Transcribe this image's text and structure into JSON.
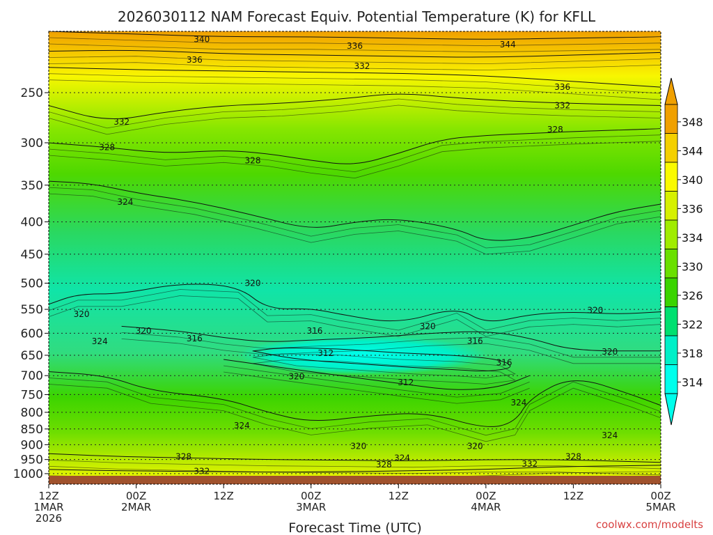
{
  "chart_data": {
    "type": "heatmap",
    "title": "2026030112 NAM Forecast Equiv. Potential Temperature (K) for KFLL",
    "xlabel": "Forecast Time (UTC)",
    "ylabel": "",
    "credit": "coolwx.com/modelts",
    "x_ticks": [
      {
        "hour": 0,
        "line1": "12Z",
        "line2": "1MAR",
        "line3": "2026"
      },
      {
        "hour": 12,
        "line1": "00Z",
        "line2": "2MAR",
        "line3": ""
      },
      {
        "hour": 24,
        "line1": "12Z",
        "line2": "",
        "line3": ""
      },
      {
        "hour": 36,
        "line1": "00Z",
        "line2": "3MAR",
        "line3": ""
      },
      {
        "hour": 48,
        "line1": "12Z",
        "line2": "",
        "line3": ""
      },
      {
        "hour": 60,
        "line1": "00Z",
        "line2": "4MAR",
        "line3": ""
      },
      {
        "hour": 72,
        "line1": "12Z",
        "line2": "",
        "line3": ""
      },
      {
        "hour": 84,
        "line1": "00Z",
        "line2": "5MAR",
        "line3": ""
      }
    ],
    "x_range": [
      0,
      84
    ],
    "y_ticks": [
      250,
      300,
      350,
      400,
      450,
      500,
      550,
      600,
      650,
      700,
      750,
      800,
      850,
      900,
      950,
      1000
    ],
    "y_range": [
      200,
      1013
    ],
    "y_scale": "log-pressure",
    "grid": "dotted-horizontal",
    "colorbar_ticks": [
      348,
      344,
      340,
      336,
      334,
      330,
      326,
      322,
      318,
      314
    ],
    "colorbar_colors": [
      "#f0a000",
      "#f4d000",
      "#fafa00",
      "#d6f000",
      "#a0ec00",
      "#6ae000",
      "#3ad400",
      "#00e070",
      "#00f0c8",
      "#00ffec"
    ],
    "contours": [
      {
        "value": 344,
        "points": [
          [
            0,
            200
          ],
          [
            12,
            202
          ],
          [
            24,
            204
          ],
          [
            36,
            204
          ],
          [
            48,
            205
          ],
          [
            60,
            206
          ],
          [
            72,
            205
          ],
          [
            84,
            204
          ]
        ]
      },
      {
        "value": 340,
        "points": [
          [
            0,
            215
          ],
          [
            12,
            214
          ],
          [
            24,
            217
          ],
          [
            36,
            218
          ],
          [
            48,
            219
          ],
          [
            60,
            220
          ],
          [
            72,
            218
          ],
          [
            84,
            216
          ]
        ]
      },
      {
        "value": 336,
        "points": [
          [
            0,
            228
          ],
          [
            12,
            230
          ],
          [
            24,
            231
          ],
          [
            36,
            232
          ],
          [
            48,
            233
          ],
          [
            60,
            235
          ],
          [
            72,
            240
          ],
          [
            84,
            245
          ]
        ]
      },
      {
        "value": 332,
        "points": [
          [
            0,
            262
          ],
          [
            8,
            278
          ],
          [
            16,
            268
          ],
          [
            24,
            262
          ],
          [
            32,
            260
          ],
          [
            40,
            256
          ],
          [
            48,
            250
          ],
          [
            56,
            255
          ],
          [
            64,
            258
          ],
          [
            72,
            260
          ],
          [
            84,
            262
          ]
        ]
      },
      {
        "value": 328,
        "points": [
          [
            0,
            300
          ],
          [
            8,
            305
          ],
          [
            16,
            312
          ],
          [
            24,
            308
          ],
          [
            30,
            312
          ],
          [
            36,
            320
          ],
          [
            42,
            326
          ],
          [
            48,
            312
          ],
          [
            54,
            296
          ],
          [
            60,
            292
          ],
          [
            66,
            290
          ],
          [
            72,
            288
          ],
          [
            84,
            285
          ]
        ]
      },
      {
        "value": 324,
        "points": [
          [
            0,
            345
          ],
          [
            6,
            348
          ],
          [
            12,
            360
          ],
          [
            20,
            372
          ],
          [
            28,
            390
          ],
          [
            36,
            412
          ],
          [
            42,
            400
          ],
          [
            48,
            395
          ],
          [
            56,
            410
          ],
          [
            60,
            430
          ],
          [
            66,
            425
          ],
          [
            72,
            405
          ],
          [
            78,
            385
          ],
          [
            84,
            375
          ]
        ]
      },
      {
        "value": 320,
        "points": [
          [
            0,
            540
          ],
          [
            4,
            520
          ],
          [
            10,
            520
          ],
          [
            18,
            500
          ],
          [
            26,
            505
          ],
          [
            30,
            550
          ],
          [
            36,
            548
          ],
          [
            40,
            560
          ],
          [
            48,
            580
          ],
          [
            56,
            545
          ],
          [
            60,
            580
          ],
          [
            66,
            560
          ],
          [
            72,
            555
          ],
          [
            78,
            560
          ],
          [
            84,
            555
          ]
        ]
      },
      {
        "value": 316,
        "points": [
          [
            10,
            585
          ],
          [
            18,
            595
          ],
          [
            24,
            610
          ],
          [
            30,
            620
          ],
          [
            36,
            615
          ],
          [
            44,
            610
          ],
          [
            52,
            600
          ],
          [
            60,
            595
          ],
          [
            66,
            610
          ],
          [
            72,
            640
          ],
          [
            84,
            640
          ]
        ]
      },
      {
        "value": 312,
        "points": [
          [
            28,
            640
          ],
          [
            34,
            660
          ],
          [
            42,
            670
          ],
          [
            50,
            680
          ],
          [
            56,
            685
          ],
          [
            60,
            690
          ],
          [
            64,
            680
          ],
          [
            62,
            660
          ],
          [
            56,
            650
          ],
          [
            48,
            645
          ],
          [
            40,
            635
          ],
          [
            32,
            632
          ],
          [
            28,
            640
          ]
        ]
      },
      {
        "value": 324,
        "points": [
          [
            0,
            690
          ],
          [
            8,
            700
          ],
          [
            14,
            740
          ],
          [
            24,
            760
          ],
          [
            30,
            800
          ],
          [
            36,
            830
          ],
          [
            44,
            810
          ],
          [
            52,
            800
          ],
          [
            60,
            850
          ],
          [
            64,
            830
          ],
          [
            66,
            760
          ],
          [
            72,
            700
          ],
          [
            80,
            750
          ],
          [
            84,
            780
          ]
        ]
      },
      {
        "value": 320,
        "points": [
          [
            24,
            660
          ],
          [
            32,
            680
          ],
          [
            40,
            700
          ],
          [
            48,
            720
          ],
          [
            56,
            740
          ],
          [
            62,
            730
          ],
          [
            66,
            700
          ]
        ]
      },
      {
        "value": 328,
        "points": [
          [
            0,
            930
          ],
          [
            10,
            940
          ],
          [
            20,
            945
          ],
          [
            30,
            950
          ],
          [
            40,
            952
          ],
          [
            50,
            955
          ],
          [
            60,
            950
          ],
          [
            70,
            950
          ],
          [
            84,
            960
          ]
        ]
      },
      {
        "value": 332,
        "points": [
          [
            0,
            985
          ],
          [
            10,
            990
          ],
          [
            20,
            992
          ],
          [
            30,
            995
          ],
          [
            40,
            993
          ],
          [
            50,
            990
          ],
          [
            60,
            985
          ],
          [
            70,
            975
          ],
          [
            84,
            970
          ]
        ]
      }
    ],
    "contour_labels": [
      {
        "value": "340",
        "hour": 21,
        "p": 206
      },
      {
        "value": "336",
        "hour": 42,
        "p": 211
      },
      {
        "value": "344",
        "hour": 63,
        "p": 210
      },
      {
        "value": "336",
        "hour": 20,
        "p": 222
      },
      {
        "value": "332",
        "hour": 43,
        "p": 227
      },
      {
        "value": "336",
        "hour": 70.5,
        "p": 245
      },
      {
        "value": "332",
        "hour": 70.5,
        "p": 262
      },
      {
        "value": "332",
        "hour": 10,
        "p": 278
      },
      {
        "value": "328",
        "hour": 69.5,
        "p": 286
      },
      {
        "value": "328",
        "hour": 8,
        "p": 305
      },
      {
        "value": "328",
        "hour": 28,
        "p": 320
      },
      {
        "value": "324",
        "hour": 10.5,
        "p": 372
      },
      {
        "value": "320",
        "hour": 28,
        "p": 500
      },
      {
        "value": "320",
        "hour": 4.5,
        "p": 560
      },
      {
        "value": "320",
        "hour": 75,
        "p": 552
      },
      {
        "value": "320",
        "hour": 52,
        "p": 585
      },
      {
        "value": "320",
        "hour": 13,
        "p": 595
      },
      {
        "value": "316",
        "hour": 36.5,
        "p": 595
      },
      {
        "value": "316",
        "hour": 20,
        "p": 612
      },
      {
        "value": "316",
        "hour": 58.5,
        "p": 617
      },
      {
        "value": "320",
        "hour": 77,
        "p": 642
      },
      {
        "value": "312",
        "hour": 38,
        "p": 645
      },
      {
        "value": "324",
        "hour": 7,
        "p": 618
      },
      {
        "value": "316",
        "hour": 62.5,
        "p": 668
      },
      {
        "value": "320",
        "hour": 34,
        "p": 702
      },
      {
        "value": "312",
        "hour": 49,
        "p": 718
      },
      {
        "value": "324",
        "hour": 64.5,
        "p": 772
      },
      {
        "value": "324",
        "hour": 26.5,
        "p": 840
      },
      {
        "value": "324",
        "hour": 77,
        "p": 870
      },
      {
        "value": "320",
        "hour": 42.5,
        "p": 905
      },
      {
        "value": "320",
        "hour": 58.5,
        "p": 905
      },
      {
        "value": "324",
        "hour": 48.5,
        "p": 945
      },
      {
        "value": "328",
        "hour": 18.5,
        "p": 940
      },
      {
        "value": "328",
        "hour": 72,
        "p": 940
      },
      {
        "value": "328",
        "hour": 46,
        "p": 968
      },
      {
        "value": "332",
        "hour": 66,
        "p": 965
      },
      {
        "value": "332",
        "hour": 21,
        "p": 992
      }
    ]
  }
}
